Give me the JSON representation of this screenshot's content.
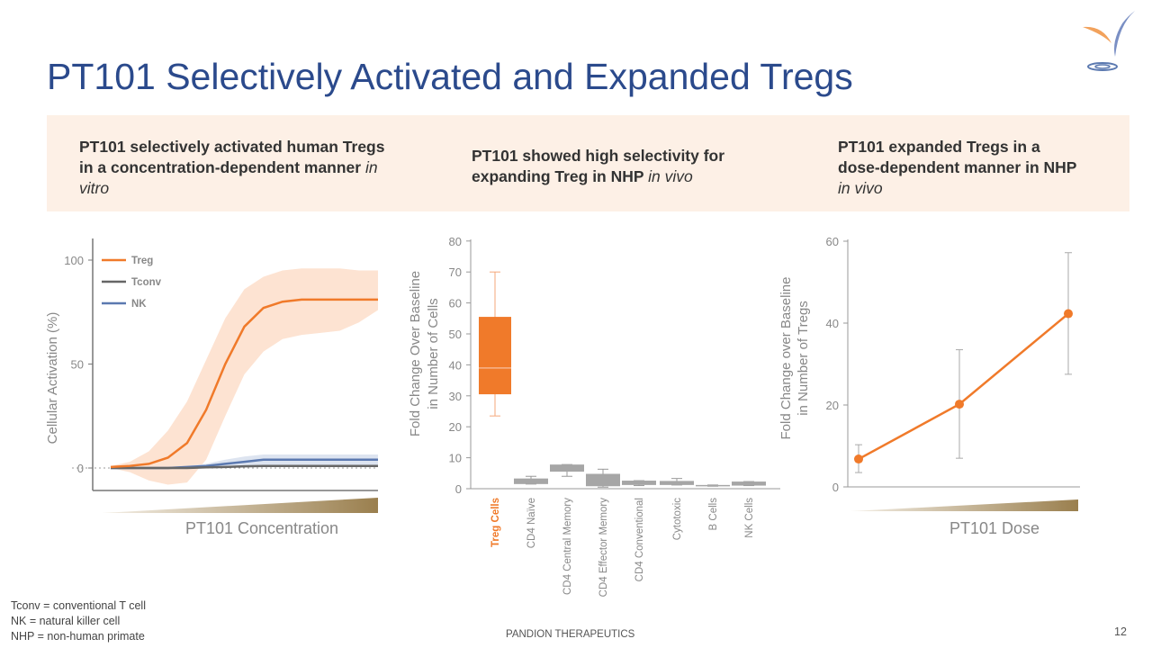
{
  "title": "PT101 Selectively Activated and Expanded Tregs",
  "banner": [
    {
      "bold": "PT101 selectively activated human Tregs in a concentration-dependent manner",
      "italic": "in vitro"
    },
    {
      "bold": "PT101 showed high selectivity for expanding Treg in NHP",
      "italic": "in vivo"
    },
    {
      "bold": "PT101 expanded Tregs in a dose-dependent manner in NHP",
      "italic": "in vivo"
    }
  ],
  "colors": {
    "title": "#2b4a8c",
    "treg": "#f07a2a",
    "tconv": "#666666",
    "nk": "#5b79b0",
    "other_cells": "#a6a6a6",
    "band": "#fde3d2",
    "gradient_end": "#9a7f4e"
  },
  "chart_data": [
    {
      "type": "line",
      "ylabel": "Cellular Activation (%)",
      "xlabel": "PT101 Concentration",
      "yticks": [
        0,
        50,
        100
      ],
      "ylim": [
        -10,
        110
      ],
      "grid": false,
      "legend": "top-left",
      "series": [
        {
          "name": "Treg",
          "values": [
            0.5,
            1,
            2,
            5,
            12,
            28,
            50,
            68,
            77,
            80,
            81,
            81,
            81,
            81,
            81
          ],
          "band_low": [
            0,
            -2,
            -6,
            -8,
            -7,
            4,
            25,
            45,
            56,
            62,
            64,
            65,
            66,
            70,
            76
          ],
          "band_high": [
            1,
            3,
            8,
            18,
            32,
            52,
            72,
            86,
            92,
            95,
            96,
            96,
            96,
            95,
            95
          ]
        },
        {
          "name": "Tconv",
          "values": [
            0,
            0,
            0,
            0,
            0,
            0.3,
            0.5,
            0.8,
            1,
            1,
            1,
            1,
            1,
            1,
            1
          ]
        },
        {
          "name": "NK",
          "values": [
            0,
            0,
            0,
            0,
            0.5,
            1,
            2,
            3,
            4,
            4,
            4,
            4,
            4,
            4,
            4
          ],
          "band_low": [
            0,
            0,
            0,
            0,
            0,
            0,
            0.5,
            1,
            1.5,
            1.5,
            1.5,
            1.5,
            1.5,
            1.5,
            1.5
          ],
          "band_high": [
            0,
            0,
            0,
            0.5,
            1,
            2,
            4,
            5.5,
            6.5,
            6.5,
            6.5,
            6.5,
            6.5,
            6.5,
            6.5
          ]
        }
      ]
    },
    {
      "type": "box",
      "ylabel": [
        "Fold Change Over Baseline",
        "in Number of Cells"
      ],
      "yticks": [
        0,
        10,
        20,
        30,
        40,
        50,
        60,
        70,
        80
      ],
      "ylim": [
        0,
        80
      ],
      "categories": [
        "Treg Cells",
        "CD4 Naïve",
        "CD4 Central Memory",
        "CD4 Effector Memory",
        "CD4 Conventional",
        "Cytotoxic",
        "B Cells",
        "NK Cells"
      ],
      "boxes": [
        {
          "min": 23.5,
          "q1": 30.5,
          "median": 39,
          "q3": 55.5,
          "max": 70
        },
        {
          "min": 1.5,
          "q1": 1.5,
          "median": 2.5,
          "q3": 3.3,
          "max": 4
        },
        {
          "min": 4,
          "q1": 5.5,
          "median": 7,
          "q3": 7.8,
          "max": 7.8
        },
        {
          "min": 0.5,
          "q1": 0.8,
          "median": 1,
          "q3": 4.8,
          "max": 6.3
        },
        {
          "min": 1,
          "q1": 1.2,
          "median": 1.8,
          "q3": 2.6,
          "max": 2.6
        },
        {
          "min": 1.2,
          "q1": 1.2,
          "median": 1.8,
          "q3": 2.5,
          "max": 3.3
        },
        {
          "min": 0.8,
          "q1": 0.8,
          "median": 1,
          "q3": 1.2,
          "max": 1.2
        },
        {
          "min": 1,
          "q1": 1,
          "median": 1.6,
          "q3": 2.3,
          "max": 2.3
        }
      ]
    },
    {
      "type": "line",
      "ylabel": [
        "Fold Change over Baseline",
        "in Number of Tregs"
      ],
      "xlabel": "PT101 Dose",
      "yticks": [
        0,
        20,
        40,
        60
      ],
      "ylim": [
        0,
        60
      ],
      "x": [
        1,
        2,
        3
      ],
      "values": [
        6.8,
        20.2,
        42.3
      ],
      "err_low": [
        3.5,
        7,
        27.5
      ],
      "err_high": [
        10.3,
        33.5,
        57.2
      ]
    }
  ],
  "footnotes": [
    "Tconv = conventional T cell",
    "NK = natural killer cell",
    "NHP = non-human primate"
  ],
  "company": "PANDION THERAPEUTICS",
  "page_number": "12",
  "logo": "pandion-bird-logo"
}
